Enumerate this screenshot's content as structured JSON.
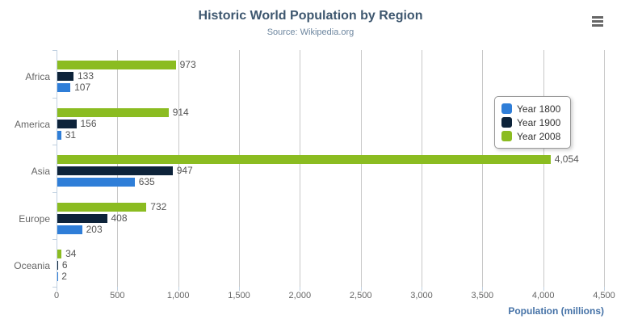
{
  "chart_data": {
    "type": "bar",
    "orientation": "horizontal",
    "title": "Historic World Population by Region",
    "subtitle": "Source: Wikipedia.org",
    "categories": [
      "Africa",
      "America",
      "Asia",
      "Europe",
      "Oceania"
    ],
    "series": [
      {
        "name": "Year 1800",
        "color": "#2f7ed8",
        "values": [
          107,
          31,
          635,
          203,
          2
        ],
        "value_labels": [
          "107",
          "31",
          "635",
          "203",
          "2"
        ]
      },
      {
        "name": "Year 1900",
        "color": "#0d233a",
        "values": [
          133,
          156,
          947,
          408,
          6
        ],
        "value_labels": [
          "133",
          "156",
          "947",
          "408",
          "6"
        ]
      },
      {
        "name": "Year 2008",
        "color": "#8bbc21",
        "values": [
          973,
          914,
          4054,
          732,
          34
        ],
        "value_labels": [
          "973",
          "914",
          "4,054",
          "732",
          "34"
        ]
      }
    ],
    "xlabel": "Population (millions)",
    "ylabel": "",
    "xlim": [
      0,
      4500
    ],
    "tick_interval": 500,
    "tick_labels": [
      "0",
      "500",
      "1,000",
      "1,500",
      "2,000",
      "2,500",
      "3,000",
      "3,500",
      "4,000",
      "4,500"
    ],
    "grid": true,
    "legend_position": "right-middle",
    "bar_order_top_to_bottom": [
      "Year 2008",
      "Year 1900",
      "Year 1800"
    ]
  },
  "toolbar": {
    "menu_icon": "hamburger-menu"
  },
  "colors": {
    "title": "#3e576f",
    "subtitle": "#6d869f",
    "axis_title": "#4572a7",
    "tick_label": "#666666",
    "category_label": "#666666",
    "data_label": "#555555",
    "gridline": "#c8c8c8",
    "axis_line": "#c0d0e0",
    "legend_border": "#999999",
    "legend_text": "#333333",
    "menu_icon": "#666666",
    "background": "#ffffff"
  }
}
